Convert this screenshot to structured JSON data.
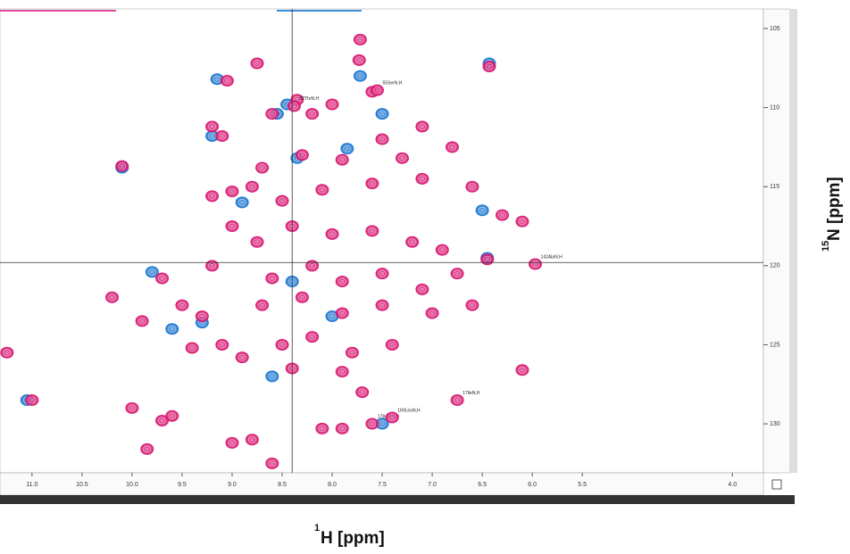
{
  "chart_data": {
    "type": "scatter",
    "x_label_sup": "1",
    "x_label": "H [ppm]",
    "y_label_sup": "15",
    "y_label": "N [ppm]",
    "xlim": [
      11.32,
      3.69
    ],
    "ylim": [
      103.76,
      133.1
    ],
    "xticks": [
      {
        "value": 11,
        "label": "11.0"
      },
      {
        "value": 10.5,
        "label": "10.5"
      },
      {
        "value": 10,
        "label": "10.0"
      },
      {
        "value": 9.5,
        "label": "9.5"
      },
      {
        "value": 9,
        "label": "9.0"
      },
      {
        "value": 8.5,
        "label": "8.5"
      },
      {
        "value": 8,
        "label": "8.0"
      },
      {
        "value": 7.5,
        "label": "7.5"
      },
      {
        "value": 7,
        "label": "7.0"
      },
      {
        "value": 6.5,
        "label": "6.5"
      },
      {
        "value": 6,
        "label": "6.0"
      },
      {
        "value": 5.5,
        "label": "5.5"
      },
      {
        "value": 4,
        "label": "4.0"
      }
    ],
    "yticks": [
      105,
      110,
      115,
      120,
      125,
      130
    ],
    "crosshair": {
      "x": 8.4,
      "y": 119.8
    },
    "series": [
      {
        "color": "#1f78d1",
        "x": [
          6.43,
          7.72,
          9.15,
          8.45,
          8.55,
          7.5,
          9.2,
          10.1,
          7.85,
          8.35,
          6.5,
          8.9,
          9.8,
          6.45,
          9.6,
          8.4,
          11.05,
          7.5,
          8.6,
          9.3,
          8.0
        ],
        "values": [
          107.2,
          108.0,
          108.2,
          109.8,
          110.4,
          110.4,
          111.8,
          113.8,
          112.6,
          113.2,
          116.5,
          116.0,
          120.4,
          119.5,
          124.0,
          121.0,
          128.5,
          130.0,
          127.0,
          123.6,
          123.2
        ]
      },
      {
        "color": "#d81b73",
        "x": [
          7.72,
          7.73,
          8.75,
          9.05,
          6.43,
          8.35,
          8.0,
          7.6,
          8.6,
          8.2,
          7.1,
          9.2,
          9.1,
          10.1,
          8.3,
          7.9,
          7.3,
          6.8,
          7.5,
          8.7,
          9.2,
          9.0,
          8.8,
          8.5,
          8.1,
          7.6,
          7.1,
          6.6,
          6.3,
          6.1,
          9.0,
          8.75,
          8.4,
          8.0,
          7.6,
          7.2,
          6.9,
          9.2,
          8.6,
          8.2,
          7.9,
          7.5,
          7.1,
          6.75,
          6.45,
          9.7,
          10.2,
          9.5,
          9.9,
          9.3,
          8.7,
          8.3,
          7.9,
          7.5,
          7.0,
          6.6,
          9.4,
          9.1,
          8.9,
          8.5,
          8.2,
          7.8,
          7.4,
          8.4,
          7.9,
          7.7,
          6.1,
          10.0,
          9.6,
          9.85,
          9.0,
          8.8,
          8.6,
          7.9,
          11.0,
          11.25,
          8.1,
          9.7
        ],
        "values": [
          105.7,
          107.0,
          107.2,
          108.3,
          107.4,
          109.5,
          109.8,
          109.0,
          110.4,
          110.4,
          111.2,
          111.2,
          111.8,
          113.7,
          113.0,
          113.3,
          113.2,
          112.5,
          112.0,
          113.8,
          115.6,
          115.3,
          115.0,
          115.9,
          115.2,
          114.8,
          114.5,
          115.0,
          116.8,
          117.2,
          117.5,
          118.5,
          117.5,
          118.0,
          117.8,
          118.5,
          119.0,
          120.0,
          120.8,
          120.0,
          121.0,
          120.5,
          121.5,
          120.5,
          119.6,
          120.8,
          122.0,
          122.5,
          123.5,
          123.2,
          122.5,
          122.0,
          123.0,
          122.5,
          123.0,
          122.5,
          125.2,
          125.0,
          125.8,
          125.0,
          124.5,
          125.5,
          125.0,
          126.5,
          126.7,
          128.0,
          126.6,
          129.0,
          129.5,
          131.6,
          131.2,
          131.0,
          132.5,
          130.3,
          128.5,
          125.5,
          130.3,
          129.8
        ]
      }
    ],
    "labeled_peaks": {
      "color": "#d81b73",
      "peaks": [
        {
          "label": "52ThrN,H",
          "x": 8.38,
          "y": 109.9
        },
        {
          "label": "55SerN,H",
          "x": 7.55,
          "y": 108.9
        },
        {
          "label": "142AlaN,H",
          "x": 5.97,
          "y": 119.9
        },
        {
          "label": "17IleN,H",
          "x": 6.75,
          "y": 128.5
        },
        {
          "label": "178AlaN,H",
          "x": 7.6,
          "y": 130.0
        },
        {
          "label": "169LeuN,H",
          "x": 7.4,
          "y": 129.6
        }
      ]
    }
  }
}
